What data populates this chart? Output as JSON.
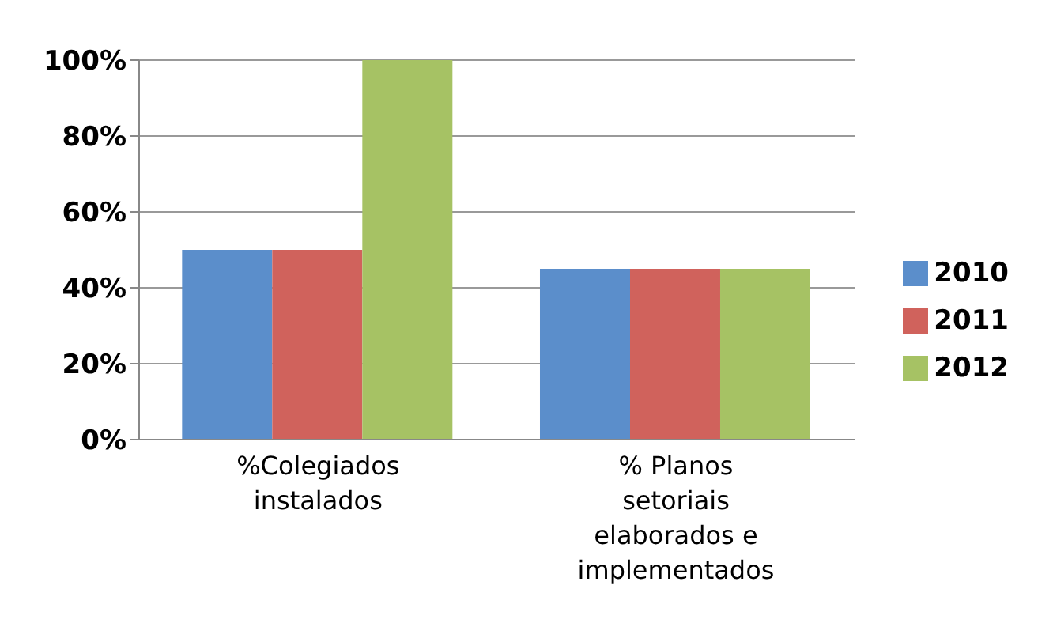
{
  "chart_data": {
    "type": "bar",
    "categories": [
      "%Colegiados instalados",
      "% Planos setoriais elaborados e implementados"
    ],
    "series": [
      {
        "name": "2010",
        "color": "#5b8ecb",
        "values": [
          50,
          45
        ]
      },
      {
        "name": "2011",
        "color": "#d0625c",
        "values": [
          50,
          45
        ]
      },
      {
        "name": "2012",
        "color": "#a6c264",
        "values": [
          100,
          45
        ]
      }
    ],
    "ylim": [
      0,
      100
    ],
    "yticks": [
      {
        "value": 0,
        "label": "0%"
      },
      {
        "value": 20,
        "label": "20%"
      },
      {
        "value": 40,
        "label": "40%"
      },
      {
        "value": 60,
        "label": "60%"
      },
      {
        "value": 80,
        "label": "80%"
      },
      {
        "value": 100,
        "label": "100%"
      }
    ],
    "grid": "y",
    "legend": "right"
  }
}
